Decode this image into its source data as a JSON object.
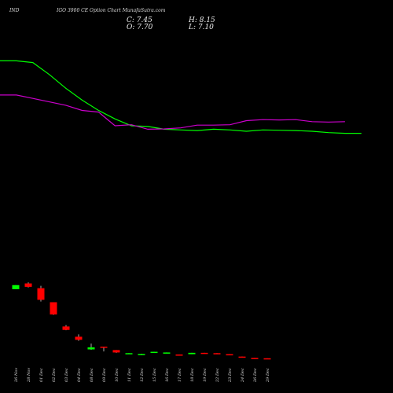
{
  "header": {
    "symbol": "IND",
    "title": "IGO 3900  CE Option  Chart MunafaSutra.com"
  },
  "ohlc": {
    "close": "C: 7.45",
    "open": "O: 7.70",
    "high": "H: 8.15",
    "low": "L: 7.10"
  },
  "colors": {
    "background": "#000000",
    "up": "#00ff00",
    "down": "#ff0000",
    "ma_fast": "#00ff00",
    "ma_slow": "#cc00cc",
    "wick": "#aaaaaa"
  },
  "chart_data": {
    "type": "candlestick",
    "x": [
      "26 Nov",
      "28 Nov",
      "01 Dec",
      "02 Dec",
      "03 Dec",
      "04 Dec",
      "08 Dec",
      "09 Dec",
      "10 Dec",
      "11 Dec",
      "12 Dec",
      "15 Dec",
      "16 Dec",
      "17 Dec",
      "18 Dec",
      "19 Dec",
      "22 Dec",
      "23 Dec",
      "24 Dec",
      "26 Dec",
      "29 Dec"
    ],
    "candles": [
      {
        "open": 252,
        "close": 264,
        "high": 264,
        "low": 252
      },
      {
        "open": 269,
        "close": 259,
        "high": 272,
        "low": 257
      },
      {
        "open": 255,
        "close": 221,
        "high": 262,
        "low": 216
      },
      {
        "open": 214,
        "close": 178,
        "high": 214,
        "low": 177
      },
      {
        "open": 143,
        "close": 133,
        "high": 147,
        "low": 132
      },
      {
        "open": 113,
        "close": 104,
        "high": 120,
        "low": 101
      },
      {
        "open": 76,
        "close": 82,
        "high": 93,
        "low": 75
      },
      {
        "open": 84,
        "close": 81,
        "high": 84,
        "low": 70
      },
      {
        "open": 74,
        "close": 67,
        "high": 74,
        "low": 66
      },
      {
        "open": 63,
        "close": 65,
        "high": 65,
        "low": 63
      },
      {
        "open": 61.5,
        "close": 62.5,
        "high": 63,
        "low": 61
      },
      {
        "open": 67,
        "close": 69,
        "high": 69,
        "low": 67
      },
      {
        "open": 66,
        "close": 67,
        "high": 67,
        "low": 66
      },
      {
        "open": 61,
        "close": 60,
        "high": 61,
        "low": 60
      },
      {
        "open": 62,
        "close": 66,
        "high": 66,
        "low": 62
      },
      {
        "open": 66,
        "close": 64,
        "high": 66,
        "low": 64
      },
      {
        "open": 65,
        "close": 63,
        "high": 65,
        "low": 63
      },
      {
        "open": 62,
        "close": 59,
        "high": 62,
        "low": 59
      },
      {
        "open": 55,
        "close": 52,
        "high": 55,
        "low": 52
      },
      {
        "open": 51,
        "close": 50,
        "high": 51,
        "low": 50
      },
      {
        "open": 50,
        "close": 49,
        "high": 50,
        "low": 49
      }
    ],
    "ma_fast": [
      [
        0,
        920
      ],
      [
        1,
        920
      ],
      [
        2,
        915
      ],
      [
        3,
        880
      ],
      [
        4,
        840
      ],
      [
        5,
        805
      ],
      [
        6,
        775
      ],
      [
        7,
        750
      ],
      [
        8,
        730
      ],
      [
        9,
        728
      ],
      [
        10,
        720
      ],
      [
        11,
        718
      ],
      [
        12,
        716
      ],
      [
        13,
        720
      ],
      [
        14,
        718
      ],
      [
        15,
        714
      ],
      [
        16,
        718
      ],
      [
        17,
        717
      ],
      [
        18,
        716
      ],
      [
        19,
        714
      ],
      [
        20,
        710
      ],
      [
        21,
        708
      ],
      [
        22,
        708
      ]
    ],
    "ma_slow": [
      [
        0,
        820
      ],
      [
        1,
        820
      ],
      [
        2,
        810
      ],
      [
        3,
        800
      ],
      [
        4,
        790
      ],
      [
        5,
        775
      ],
      [
        6,
        770
      ],
      [
        7,
        730
      ],
      [
        8,
        733
      ],
      [
        9,
        720
      ],
      [
        10,
        721
      ],
      [
        11,
        724
      ],
      [
        12,
        732
      ],
      [
        13,
        732
      ],
      [
        14,
        733
      ],
      [
        15,
        745
      ],
      [
        16,
        748
      ],
      [
        17,
        747
      ],
      [
        18,
        748
      ],
      [
        19,
        742
      ],
      [
        20,
        741
      ],
      [
        21,
        742
      ]
    ],
    "ylim": [
      45,
      960
    ],
    "ma_x_start": 0
  }
}
